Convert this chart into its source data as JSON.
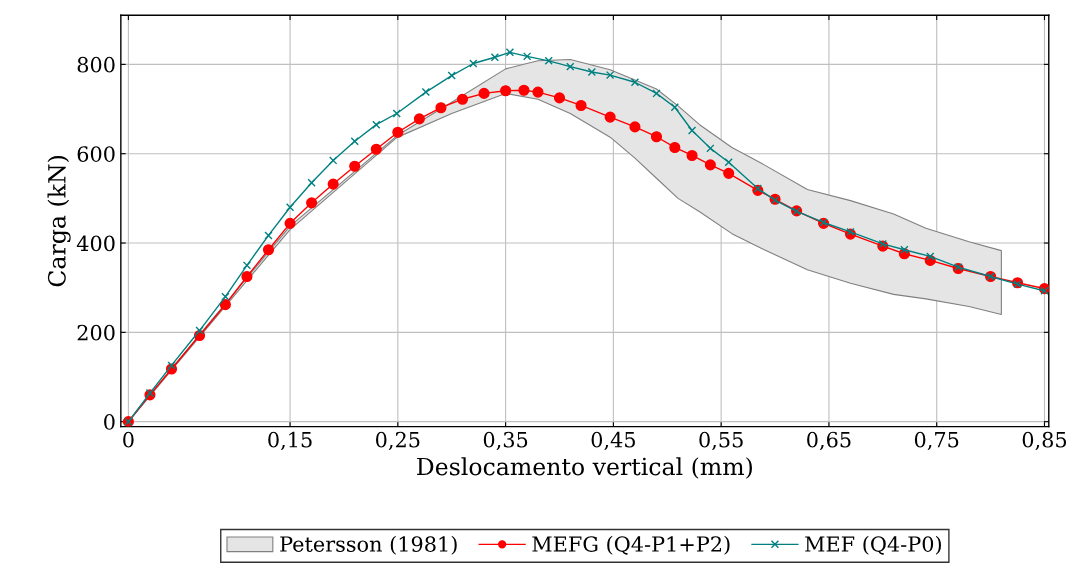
{
  "chart_data": {
    "type": "line",
    "xlabel": "Deslocamento vertical (mm)",
    "ylabel": "Carga (kN)",
    "xlim": [
      -0.007,
      0.854
    ],
    "ylim": [
      -11,
      910
    ],
    "xticks": [
      0,
      {
        "value": 0.15,
        "label": "0,15"
      },
      {
        "value": 0.25,
        "label": "0,25"
      },
      {
        "value": 0.35,
        "label": "0,35"
      },
      {
        "value": 0.45,
        "label": "0,45"
      },
      {
        "value": 0.55,
        "label": "0,55"
      },
      {
        "value": 0.65,
        "label": "0,65"
      },
      {
        "value": 0.75,
        "label": "0,75"
      },
      {
        "value": 0.85,
        "label": "0,85"
      }
    ],
    "yticks": [
      0,
      200,
      400,
      600,
      800
    ],
    "grid": true,
    "legend": "bottom",
    "series": [
      {
        "name": "Petersson (1981)",
        "type": "area",
        "color": "#e5e5e5",
        "x": [
          0,
          0.066,
          0.15,
          0.249,
          0.3,
          0.35,
          0.38,
          0.41,
          0.447,
          0.47,
          0.49,
          0.51,
          0.53,
          0.56,
          0.59,
          0.63,
          0.67,
          0.71,
          0.74,
          0.78,
          0.81
        ],
        "values": [
          null,
          null,
          null,
          null,
          null,
          null,
          null,
          null,
          null,
          null,
          null,
          null,
          null,
          null,
          null,
          null,
          null,
          null,
          null,
          null,
          null
        ],
        "lower": [
          0,
          190,
          430,
          636,
          690,
          735,
          722,
          690,
          637,
          590,
          545,
          500,
          470,
          421,
          385,
          340,
          310,
          285,
          275,
          258,
          240
        ],
        "upper": [
          0,
          195,
          438,
          640,
          715,
          790,
          808,
          811,
          788,
          765,
          745,
          707,
          665,
          614,
          575,
          520,
          495,
          465,
          433,
          403,
          383
        ]
      },
      {
        "name": "MEFG (Q4-P1+P2)",
        "color": "#ff0000",
        "marker": "circle",
        "x": [
          0,
          0.02,
          0.04,
          0.066,
          0.09,
          0.11,
          0.13,
          0.15,
          0.17,
          0.19,
          0.21,
          0.23,
          0.25,
          0.27,
          0.29,
          0.31,
          0.33,
          0.35,
          0.367,
          0.38,
          0.4,
          0.42,
          0.447,
          0.47,
          0.49,
          0.507,
          0.523,
          0.54,
          0.557,
          0.584,
          0.6,
          0.62,
          0.645,
          0.67,
          0.7,
          0.72,
          0.744,
          0.77,
          0.8,
          0.825,
          0.85
        ],
        "values": [
          0,
          60,
          118,
          193,
          262,
          325,
          385,
          444,
          490,
          532,
          572,
          610,
          648,
          678,
          703,
          722,
          735,
          741,
          742,
          738,
          725,
          708,
          682,
          660,
          638,
          614,
          596,
          575,
          556,
          518,
          498,
          472,
          444,
          420,
          393,
          376,
          361,
          343,
          325,
          311,
          298
        ]
      },
      {
        "name": "MEF (Q4-P0)",
        "color": "#008080",
        "marker": "cross",
        "x": [
          0,
          0.02,
          0.04,
          0.066,
          0.09,
          0.11,
          0.13,
          0.15,
          0.17,
          0.19,
          0.21,
          0.23,
          0.249,
          0.276,
          0.3,
          0.32,
          0.34,
          0.354,
          0.37,
          0.39,
          0.41,
          0.43,
          0.447,
          0.47,
          0.49,
          0.507,
          0.523,
          0.54,
          0.557,
          0.584,
          0.6,
          0.62,
          0.645,
          0.67,
          0.7,
          0.72,
          0.744,
          0.77,
          0.8,
          0.825,
          0.85
        ],
        "values": [
          0,
          64,
          126,
          204,
          280,
          350,
          417,
          480,
          535,
          585,
          628,
          665,
          690,
          738,
          775,
          802,
          816,
          827,
          818,
          808,
          795,
          783,
          776,
          760,
          735,
          704,
          652,
          612,
          581,
          522,
          496,
          471,
          446,
          425,
          398,
          385,
          370,
          346,
          325,
          308,
          293
        ]
      }
    ]
  }
}
